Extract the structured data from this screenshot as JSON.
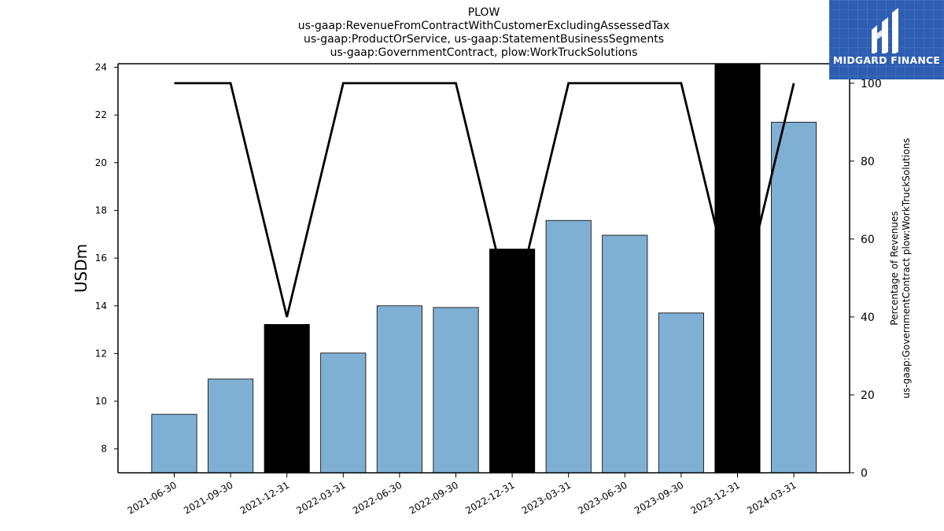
{
  "header": {
    "title_lines": [
      "PLOW",
      "us-gaap:RevenueFromContractWithCustomerExcludingAssessedTax",
      "us-gaap:ProductOrService, us-gaap:StatementBusinessSegments",
      "us-gaap:GovernmentContract, plow:WorkTruckSolutions"
    ]
  },
  "logo": {
    "text": "MIDGARD FINANCE",
    "icon": "midgard-finance-logo-icon",
    "color": "#2e5eb2"
  },
  "chart_data": {
    "type": "bar",
    "categories": [
      "2021-06-30",
      "2021-09-30",
      "2021-12-31",
      "2022-03-31",
      "2022-06-30",
      "2022-09-30",
      "2022-12-31",
      "2023-03-31",
      "2023-06-30",
      "2023-09-30",
      "2023-12-31",
      "2024-03-31"
    ],
    "series": [
      {
        "values": [
          9.45,
          10.93,
          13.22,
          12.02,
          14.0,
          13.93,
          16.38,
          17.58,
          16.96,
          13.7,
          24.3,
          21.7
        ],
        "highlight": [
          false,
          false,
          true,
          false,
          false,
          false,
          true,
          false,
          false,
          false,
          true,
          false
        ],
        "axis": "left"
      },
      {
        "type": "line",
        "values": [
          100,
          100,
          40,
          100,
          100,
          100,
          40,
          100,
          100,
          100,
          40,
          100
        ],
        "axis": "right"
      }
    ],
    "ylabel": "USDm",
    "y2label_lines": [
      "Percentage of Revenues",
      "us-gaap:GovernmentContract plow:WorkTruckSolutions"
    ],
    "ylim": [
      7.0,
      24.15
    ],
    "y2lim": [
      0,
      105
    ],
    "yticks": [
      8,
      10,
      12,
      14,
      16,
      18,
      20,
      22,
      24
    ],
    "y2ticks": [
      0,
      20,
      40,
      60,
      80,
      100
    ],
    "colors": {
      "bar": "#7fafd3",
      "bar_highlight": "#000000",
      "line": "#000000",
      "edge": "#000000"
    }
  }
}
